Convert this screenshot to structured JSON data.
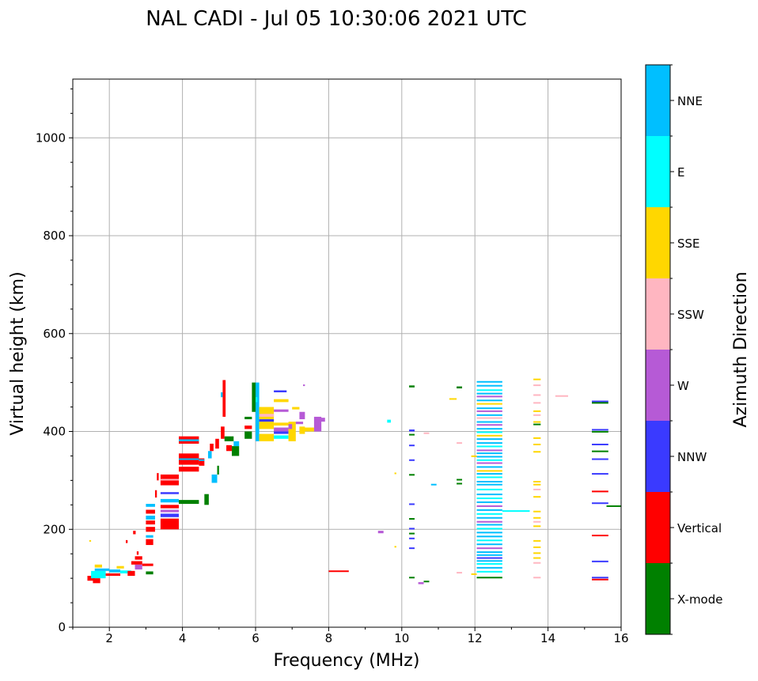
{
  "chart_data": {
    "type": "scatter",
    "title": "NAL CADI - Jul 05 10:30:06 2021 UTC",
    "xlabel": "Frequency (MHz)",
    "ylabel": "Virtual height (km)",
    "xlim": [
      1,
      16
    ],
    "ylim": [
      0,
      1120
    ],
    "xticks": [
      2,
      4,
      6,
      8,
      10,
      12,
      14,
      16
    ],
    "yticks": [
      0,
      200,
      400,
      600,
      800,
      1000
    ],
    "grid": true,
    "colorbar": {
      "label": "Azimuth Direction",
      "categories": [
        "X-mode",
        "Vertical",
        "NNW",
        "W",
        "SSW",
        "SSE",
        "E",
        "NNE"
      ],
      "colors": [
        "#008000",
        "#ff0000",
        "#3a3aff",
        "#b65ad6",
        "#ffb6c1",
        "#ffd700",
        "#00ffff",
        "#00bfff"
      ]
    },
    "segments": [
      [
        1.4,
        1.6,
        95,
        105,
        1
      ],
      [
        1.5,
        1.9,
        100,
        115,
        6
      ],
      [
        1.6,
        2.0,
        115,
        120,
        7
      ],
      [
        1.55,
        1.75,
        90,
        100,
        1
      ],
      [
        1.6,
        1.8,
        122,
        128,
        5
      ],
      [
        1.9,
        2.3,
        105,
        110,
        1
      ],
      [
        2.0,
        2.3,
        112,
        118,
        7
      ],
      [
        2.2,
        2.4,
        120,
        125,
        5
      ],
      [
        2.3,
        2.6,
        110,
        116,
        6
      ],
      [
        2.5,
        2.7,
        105,
        115,
        1
      ],
      [
        2.7,
        2.9,
        118,
        128,
        3
      ],
      [
        2.6,
        2.9,
        128,
        135,
        1
      ],
      [
        2.7,
        2.9,
        138,
        145,
        1
      ],
      [
        3.0,
        3.2,
        108,
        114,
        0
      ],
      [
        2.9,
        3.2,
        125,
        130,
        1
      ],
      [
        2.75,
        2.8,
        148,
        155,
        1
      ],
      [
        1.45,
        1.5,
        175,
        178,
        5
      ],
      [
        2.45,
        2.5,
        172,
        178,
        1
      ],
      [
        2.65,
        2.72,
        190,
        197,
        1
      ],
      [
        3.0,
        3.2,
        168,
        180,
        1
      ],
      [
        3.0,
        3.2,
        183,
        188,
        7
      ],
      [
        3.0,
        3.25,
        195,
        205,
        1
      ],
      [
        3.0,
        3.25,
        210,
        218,
        1
      ],
      [
        3.0,
        3.25,
        220,
        228,
        7
      ],
      [
        3.0,
        3.25,
        232,
        240,
        1
      ],
      [
        3.0,
        3.25,
        246,
        252,
        7
      ],
      [
        3.25,
        3.3,
        265,
        280,
        1
      ],
      [
        3.3,
        3.35,
        300,
        315,
        1
      ],
      [
        3.4,
        3.9,
        200,
        222,
        1
      ],
      [
        3.4,
        3.9,
        225,
        232,
        2
      ],
      [
        3.4,
        3.9,
        235,
        240,
        3
      ],
      [
        3.4,
        3.9,
        243,
        250,
        1
      ],
      [
        3.4,
        3.9,
        255,
        262,
        7
      ],
      [
        3.4,
        3.9,
        272,
        276,
        2
      ],
      [
        3.4,
        3.9,
        290,
        312,
        1
      ],
      [
        3.4,
        3.9,
        300,
        303,
        4
      ],
      [
        3.9,
        4.45,
        252,
        260,
        0
      ],
      [
        3.9,
        4.45,
        318,
        328,
        1
      ],
      [
        3.9,
        4.45,
        332,
        355,
        1
      ],
      [
        3.9,
        4.45,
        342,
        345,
        7
      ],
      [
        3.9,
        4.45,
        375,
        390,
        1
      ],
      [
        3.9,
        4.45,
        380,
        384,
        7
      ],
      [
        4.45,
        4.6,
        330,
        345,
        1
      ],
      [
        4.45,
        4.6,
        340,
        343,
        7
      ],
      [
        4.6,
        4.72,
        250,
        272,
        0
      ],
      [
        4.8,
        4.95,
        295,
        312,
        7
      ],
      [
        4.95,
        5.0,
        312,
        330,
        0
      ],
      [
        4.7,
        4.8,
        345,
        360,
        7
      ],
      [
        4.75,
        4.85,
        360,
        375,
        1
      ],
      [
        4.9,
        5.0,
        365,
        385,
        1
      ],
      [
        5.05,
        5.15,
        385,
        410,
        1
      ],
      [
        5.1,
        5.18,
        430,
        505,
        1
      ],
      [
        5.05,
        5.1,
        470,
        480,
        7
      ],
      [
        5.15,
        5.4,
        380,
        390,
        0
      ],
      [
        5.2,
        5.35,
        360,
        372,
        1
      ],
      [
        5.35,
        5.55,
        350,
        370,
        0
      ],
      [
        5.4,
        5.55,
        370,
        380,
        7
      ],
      [
        5.7,
        5.9,
        385,
        400,
        0
      ],
      [
        5.7,
        5.9,
        405,
        412,
        1
      ],
      [
        5.7,
        5.9,
        425,
        430,
        0
      ],
      [
        5.9,
        6.0,
        440,
        500,
        0
      ],
      [
        6.0,
        6.1,
        380,
        500,
        7
      ],
      [
        6.0,
        6.05,
        460,
        470,
        6
      ],
      [
        6.1,
        6.5,
        380,
        395,
        5
      ],
      [
        6.1,
        6.5,
        405,
        450,
        5
      ],
      [
        6.1,
        6.5,
        430,
        436,
        4
      ],
      [
        6.1,
        6.5,
        420,
        425,
        2
      ],
      [
        6.5,
        6.9,
        460,
        466,
        5
      ],
      [
        6.5,
        6.9,
        440,
        445,
        3
      ],
      [
        6.5,
        6.9,
        412,
        418,
        5
      ],
      [
        6.5,
        6.9,
        395,
        400,
        2
      ],
      [
        6.5,
        6.9,
        385,
        392,
        6
      ],
      [
        6.5,
        6.9,
        400,
        408,
        3
      ],
      [
        6.5,
        6.85,
        480,
        484,
        2
      ],
      [
        6.9,
        7.1,
        380,
        420,
        5
      ],
      [
        6.9,
        7.0,
        405,
        415,
        3
      ],
      [
        7.0,
        7.2,
        445,
        450,
        5
      ],
      [
        7.1,
        7.3,
        415,
        420,
        3
      ],
      [
        7.2,
        7.35,
        425,
        440,
        3
      ],
      [
        7.2,
        7.35,
        395,
        410,
        5
      ],
      [
        7.3,
        7.6,
        400,
        408,
        5
      ],
      [
        7.6,
        7.8,
        400,
        430,
        3
      ],
      [
        7.7,
        7.9,
        420,
        428,
        3
      ],
      [
        7.3,
        7.35,
        493,
        496,
        3
      ],
      [
        8.0,
        8.55,
        113,
        116,
        1
      ],
      [
        9.35,
        9.5,
        192,
        197,
        3
      ],
      [
        9.6,
        9.7,
        418,
        424,
        6
      ],
      [
        9.8,
        9.85,
        163,
        166,
        5
      ],
      [
        9.8,
        9.85,
        313,
        316,
        5
      ],
      [
        10.2,
        10.35,
        490,
        494,
        0
      ],
      [
        10.2,
        10.35,
        400,
        404,
        2
      ],
      [
        10.2,
        10.35,
        392,
        395,
        0
      ],
      [
        10.2,
        10.35,
        370,
        373,
        2
      ],
      [
        10.2,
        10.35,
        340,
        343,
        2
      ],
      [
        10.2,
        10.35,
        310,
        313,
        0
      ],
      [
        10.2,
        10.35,
        250,
        253,
        2
      ],
      [
        10.2,
        10.35,
        220,
        223,
        0
      ],
      [
        10.2,
        10.35,
        200,
        203,
        2
      ],
      [
        10.2,
        10.35,
        190,
        193,
        0
      ],
      [
        10.2,
        10.35,
        180,
        183,
        2
      ],
      [
        10.2,
        10.35,
        160,
        163,
        2
      ],
      [
        10.2,
        10.35,
        100,
        103,
        0
      ],
      [
        10.45,
        10.6,
        88,
        92,
        3
      ],
      [
        10.6,
        10.75,
        92,
        95,
        0
      ],
      [
        10.6,
        10.75,
        395,
        398,
        4
      ],
      [
        10.8,
        10.95,
        290,
        293,
        7
      ],
      [
        11.3,
        11.5,
        465,
        468,
        5
      ],
      [
        11.5,
        11.65,
        488,
        492,
        0
      ],
      [
        11.5,
        11.65,
        375,
        378,
        4
      ],
      [
        11.5,
        11.65,
        300,
        303,
        0
      ],
      [
        11.5,
        11.65,
        292,
        295,
        0
      ],
      [
        11.5,
        11.65,
        110,
        113,
        4
      ],
      [
        11.9,
        12.05,
        348,
        351,
        5
      ],
      [
        11.9,
        12.05,
        107,
        110,
        5
      ],
      [
        12.75,
        13.5,
        236,
        239,
        6
      ],
      [
        14.2,
        14.55,
        472,
        474,
        4
      ],
      [
        15.6,
        16.0,
        246,
        249,
        0
      ]
    ],
    "band_12MHz": {
      "freq": [
        12.05,
        12.75
      ],
      "lines": [
        [
          500,
          7
        ],
        [
          492,
          7
        ],
        [
          483,
          6
        ],
        [
          476,
          7
        ],
        [
          470,
          3
        ],
        [
          462,
          7
        ],
        [
          455,
          5
        ],
        [
          446,
          7
        ],
        [
          440,
          3
        ],
        [
          432,
          7
        ],
        [
          426,
          4
        ],
        [
          418,
          7
        ],
        [
          412,
          3
        ],
        [
          404,
          7
        ],
        [
          397,
          6
        ],
        [
          390,
          5
        ],
        [
          383,
          7
        ],
        [
          375,
          7
        ],
        [
          368,
          6
        ],
        [
          360,
          3
        ],
        [
          354,
          7
        ],
        [
          347,
          7
        ],
        [
          340,
          6
        ],
        [
          334,
          3
        ],
        [
          326,
          7
        ],
        [
          318,
          5
        ],
        [
          312,
          7
        ],
        [
          305,
          6
        ],
        [
          296,
          7
        ],
        [
          290,
          7
        ],
        [
          280,
          6
        ],
        [
          270,
          7
        ],
        [
          262,
          6
        ],
        [
          254,
          7
        ],
        [
          246,
          3
        ],
        [
          238,
          7
        ],
        [
          230,
          6
        ],
        [
          222,
          7
        ],
        [
          214,
          3
        ],
        [
          208,
          7
        ],
        [
          200,
          6
        ],
        [
          192,
          7
        ],
        [
          184,
          7
        ],
        [
          176,
          6
        ],
        [
          168,
          7
        ],
        [
          160,
          3
        ],
        [
          152,
          7
        ],
        [
          146,
          7
        ],
        [
          140,
          2
        ],
        [
          134,
          7
        ],
        [
          128,
          6
        ],
        [
          120,
          7
        ],
        [
          112,
          6
        ],
        [
          100,
          0
        ]
      ]
    },
    "band_13_7MHz": {
      "freq": [
        13.6,
        13.8
      ],
      "lines": [
        [
          505,
          5
        ],
        [
          493,
          4
        ],
        [
          473,
          4
        ],
        [
          457,
          4
        ],
        [
          440,
          5
        ],
        [
          432,
          4
        ],
        [
          418,
          5
        ],
        [
          413,
          0
        ],
        [
          385,
          5
        ],
        [
          372,
          5
        ],
        [
          357,
          5
        ],
        [
          296,
          5
        ],
        [
          290,
          5
        ],
        [
          280,
          4
        ],
        [
          265,
          5
        ],
        [
          235,
          5
        ],
        [
          222,
          5
        ],
        [
          214,
          4
        ],
        [
          205,
          5
        ],
        [
          175,
          5
        ],
        [
          162,
          5
        ],
        [
          150,
          5
        ],
        [
          140,
          5
        ],
        [
          130,
          4
        ],
        [
          100,
          4
        ]
      ]
    },
    "band_15_4MHz": {
      "freq": [
        15.2,
        15.65
      ],
      "lines": [
        [
          460,
          2
        ],
        [
          457,
          0
        ],
        [
          402,
          2
        ],
        [
          398,
          0
        ],
        [
          372,
          2
        ],
        [
          358,
          0
        ],
        [
          342,
          2
        ],
        [
          312,
          2
        ],
        [
          276,
          1
        ],
        [
          252,
          2
        ],
        [
          186,
          1
        ],
        [
          133,
          2
        ],
        [
          100,
          2
        ],
        [
          96,
          1
        ]
      ]
    }
  }
}
